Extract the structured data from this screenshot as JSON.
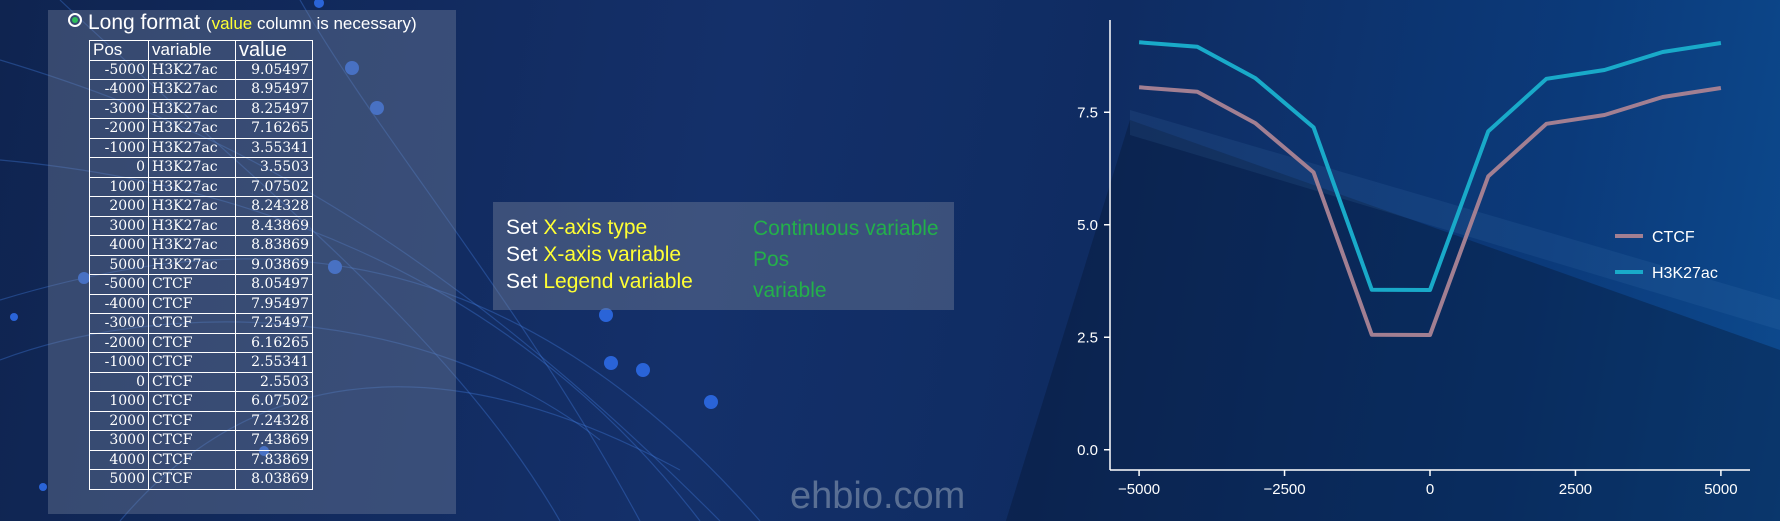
{
  "left_panel": {
    "title": "Long format",
    "note_open": "(",
    "note_highlight": "value",
    "note_rest": " column is necessary)",
    "columns": [
      "Pos",
      "variable",
      "value"
    ],
    "rows": [
      [
        "-5000",
        "H3K27ac",
        "9.05497"
      ],
      [
        "-4000",
        "H3K27ac",
        "8.95497"
      ],
      [
        "-3000",
        "H3K27ac",
        "8.25497"
      ],
      [
        "-2000",
        "H3K27ac",
        "7.16265"
      ],
      [
        "-1000",
        "H3K27ac",
        "3.55341"
      ],
      [
        "0",
        "H3K27ac",
        "3.5503"
      ],
      [
        "1000",
        "H3K27ac",
        "7.07502"
      ],
      [
        "2000",
        "H3K27ac",
        "8.24328"
      ],
      [
        "3000",
        "H3K27ac",
        "8.43869"
      ],
      [
        "4000",
        "H3K27ac",
        "8.83869"
      ],
      [
        "5000",
        "H3K27ac",
        "9.03869"
      ],
      [
        "-5000",
        "CTCF",
        "8.05497"
      ],
      [
        "-4000",
        "CTCF",
        "7.95497"
      ],
      [
        "-3000",
        "CTCF",
        "7.25497"
      ],
      [
        "-2000",
        "CTCF",
        "6.16265"
      ],
      [
        "-1000",
        "CTCF",
        "2.55341"
      ],
      [
        "0",
        "CTCF",
        "2.5503"
      ],
      [
        "1000",
        "CTCF",
        "6.07502"
      ],
      [
        "2000",
        "CTCF",
        "7.24328"
      ],
      [
        "3000",
        "CTCF",
        "7.43869"
      ],
      [
        "4000",
        "CTCF",
        "7.83869"
      ],
      [
        "5000",
        "CTCF",
        "8.03869"
      ]
    ]
  },
  "settings": {
    "items": [
      {
        "prefix": "Set ",
        "key": "X-axis type",
        "value": "Continuous variable"
      },
      {
        "prefix": "Set ",
        "key": "X-axis variable",
        "value": "Pos"
      },
      {
        "prefix": "Set ",
        "key": "Legend variable",
        "value": "variable"
      }
    ]
  },
  "watermark": "ehbio.com",
  "colors": {
    "highlight": "#ffff33",
    "setting_value": "#23b04a",
    "ctcf": "#a27f92",
    "h3k27ac": "#19aac9"
  },
  "chart_data": {
    "type": "line",
    "x": [
      -5000,
      -4000,
      -3000,
      -2000,
      -1000,
      0,
      1000,
      2000,
      3000,
      4000,
      5000
    ],
    "series": [
      {
        "name": "CTCF",
        "color": "#a27f92",
        "values": [
          8.05497,
          7.95497,
          7.25497,
          6.16265,
          2.55341,
          2.5503,
          6.07502,
          7.24328,
          7.43869,
          7.83869,
          8.03869
        ]
      },
      {
        "name": "H3K27ac",
        "color": "#19aac9",
        "values": [
          9.05497,
          8.95497,
          8.25497,
          7.16265,
          3.55341,
          3.5503,
          7.07502,
          8.24328,
          8.43869,
          8.83869,
          9.03869
        ]
      }
    ],
    "xticks": [
      -5000,
      -2500,
      0,
      2500,
      5000
    ],
    "xtick_labels": [
      "−5000",
      "−2500",
      "0",
      "2500",
      "5000"
    ],
    "yticks": [
      0,
      2.5,
      5,
      7.5
    ],
    "ytick_labels": [
      "0.0",
      "2.5",
      "5.0",
      "7.5"
    ],
    "xlim": [
      -5500,
      5500
    ],
    "ylim": [
      -0.45,
      9.55
    ],
    "legend_position": "right",
    "grid": false
  }
}
